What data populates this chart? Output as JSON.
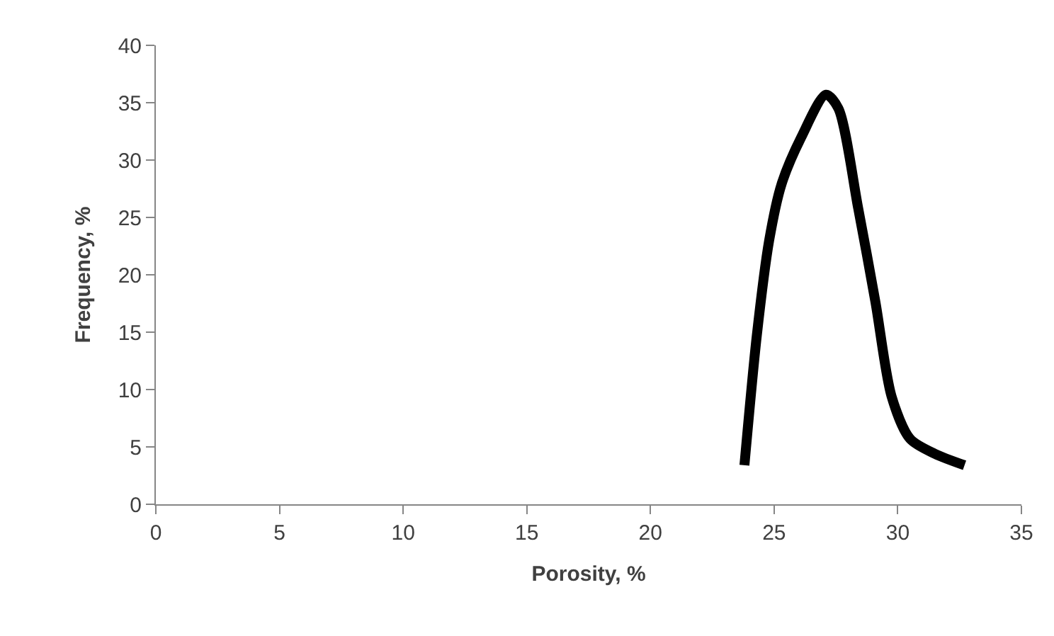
{
  "chart_data": {
    "type": "line",
    "xlabel": "Porosity, %",
    "ylabel": "Frequency, %",
    "series": [
      {
        "color": "#000000",
        "x": [
          23.8,
          24.3,
          24.8,
          25.3,
          26.1,
          27.1,
          27.6,
          28.4,
          29.1,
          29.75,
          30.5,
          31.5,
          32.7
        ],
        "values": [
          3.4,
          14.7,
          23.0,
          27.9,
          32.0,
          35.7,
          34.5,
          25.8,
          17.6,
          9.4,
          5.7,
          4.4,
          3.4
        ]
      }
    ],
    "xlim": [
      0,
      35
    ],
    "xticks": [
      0,
      5,
      10,
      15,
      20,
      25,
      30,
      35
    ],
    "ylim": [
      0,
      40
    ],
    "yticks": [
      0,
      5,
      10,
      15,
      20,
      25,
      30,
      35,
      40
    ],
    "legend": false,
    "marker": "none",
    "line_style": "solid"
  }
}
